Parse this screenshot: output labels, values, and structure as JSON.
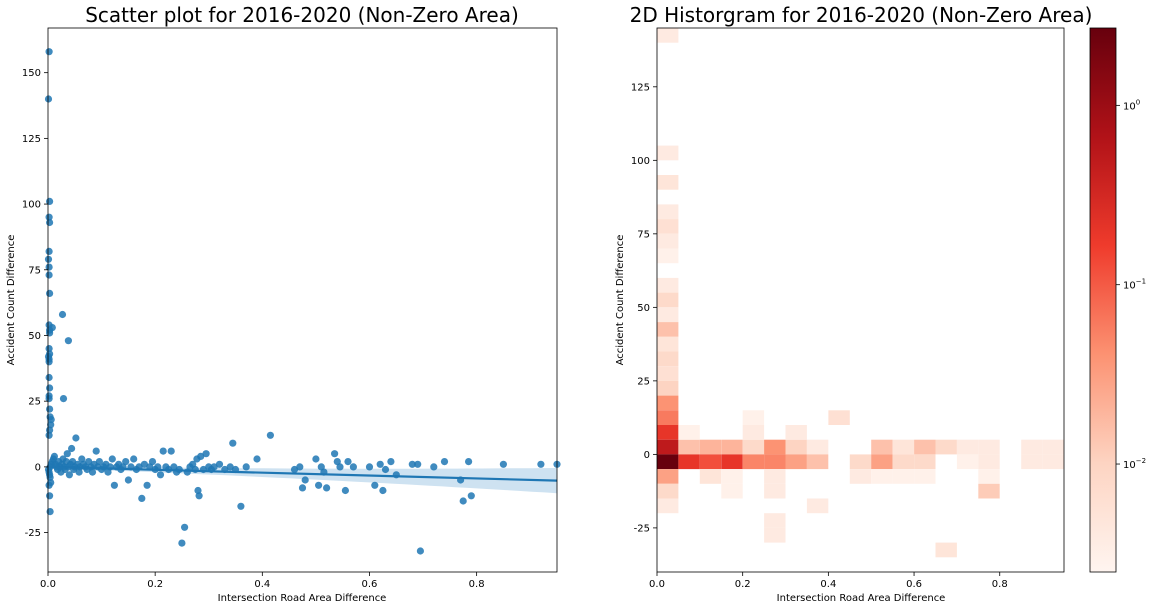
{
  "chart_data": [
    {
      "type": "scatter",
      "title": "Scatter plot for 2016-2020 (Non-Zero Area)",
      "xlabel": "Intersection Road Area Difference",
      "ylabel": "Accident Count Difference",
      "xlim": [
        0,
        0.95
      ],
      "ylim": [
        -40,
        167
      ],
      "xticks": [
        "0.0",
        "0.2",
        "0.4",
        "0.6",
        "0.8"
      ],
      "yticks": [
        "-25",
        "0",
        "25",
        "50",
        "75",
        "100",
        "125",
        "150"
      ],
      "grid": false,
      "color": "#1f77b4",
      "points": [
        [
          0.002,
          158
        ],
        [
          0.001,
          140
        ],
        [
          0.003,
          101
        ],
        [
          0.002,
          95
        ],
        [
          0.003,
          93
        ],
        [
          0.002,
          82
        ],
        [
          0.001,
          79
        ],
        [
          0.002,
          76
        ],
        [
          0.002,
          73
        ],
        [
          0.003,
          66
        ],
        [
          0.002,
          54
        ],
        [
          0.003,
          52
        ],
        [
          0.003,
          51
        ],
        [
          0.002,
          45
        ],
        [
          0.003,
          43
        ],
        [
          0.001,
          42
        ],
        [
          0.002,
          41
        ],
        [
          0.002,
          40
        ],
        [
          0.002,
          34
        ],
        [
          0.003,
          30
        ],
        [
          0.002,
          27
        ],
        [
          0.002,
          26
        ],
        [
          0.003,
          22
        ],
        [
          0.004,
          19
        ],
        [
          0.006,
          18
        ],
        [
          0.005,
          16
        ],
        [
          0.003,
          14
        ],
        [
          0.002,
          12
        ],
        [
          0.008,
          53
        ],
        [
          0.027,
          58
        ],
        [
          0.038,
          48
        ],
        [
          0.029,
          26
        ],
        [
          0.004,
          -17
        ],
        [
          0.003,
          -11
        ],
        [
          0.002,
          -7
        ],
        [
          0.005,
          -6
        ],
        [
          0.004,
          -4
        ],
        [
          0.003,
          -3
        ],
        [
          0.002,
          -2
        ],
        [
          0.001,
          -1
        ],
        [
          0.004,
          0
        ],
        [
          0.006,
          1
        ],
        [
          0.008,
          2
        ],
        [
          0.01,
          3
        ],
        [
          0.012,
          4
        ],
        [
          0.014,
          1
        ],
        [
          0.016,
          0
        ],
        [
          0.018,
          -1
        ],
        [
          0.02,
          2
        ],
        [
          0.022,
          0
        ],
        [
          0.024,
          -2
        ],
        [
          0.026,
          1
        ],
        [
          0.028,
          3
        ],
        [
          0.03,
          0
        ],
        [
          0.032,
          -1
        ],
        [
          0.034,
          2
        ],
        [
          0.036,
          5
        ],
        [
          0.038,
          0
        ],
        [
          0.04,
          -3
        ],
        [
          0.042,
          1
        ],
        [
          0.044,
          7
        ],
        [
          0.046,
          2
        ],
        [
          0.048,
          -1
        ],
        [
          0.05,
          0
        ],
        [
          0.052,
          11
        ],
        [
          0.055,
          1
        ],
        [
          0.058,
          -2
        ],
        [
          0.06,
          0
        ],
        [
          0.063,
          3
        ],
        [
          0.066,
          1
        ],
        [
          0.07,
          0
        ],
        [
          0.073,
          -1
        ],
        [
          0.076,
          2
        ],
        [
          0.08,
          0
        ],
        [
          0.083,
          -2
        ],
        [
          0.086,
          1
        ],
        [
          0.09,
          6
        ],
        [
          0.093,
          0
        ],
        [
          0.096,
          2
        ],
        [
          0.1,
          -1
        ],
        [
          0.104,
          0
        ],
        [
          0.108,
          1
        ],
        [
          0.112,
          -2
        ],
        [
          0.116,
          0
        ],
        [
          0.12,
          3
        ],
        [
          0.124,
          -7
        ],
        [
          0.128,
          0
        ],
        [
          0.132,
          1
        ],
        [
          0.136,
          -1
        ],
        [
          0.14,
          0
        ],
        [
          0.145,
          2
        ],
        [
          0.15,
          -5
        ],
        [
          0.155,
          0
        ],
        [
          0.16,
          3
        ],
        [
          0.165,
          -1
        ],
        [
          0.17,
          0
        ],
        [
          0.175,
          -12
        ],
        [
          0.18,
          1
        ],
        [
          0.185,
          -7
        ],
        [
          0.19,
          0
        ],
        [
          0.195,
          2
        ],
        [
          0.2,
          -1
        ],
        [
          0.205,
          0
        ],
        [
          0.21,
          -3
        ],
        [
          0.215,
          6
        ],
        [
          0.22,
          0
        ],
        [
          0.225,
          -1
        ],
        [
          0.23,
          6
        ],
        [
          0.235,
          0
        ],
        [
          0.24,
          -2
        ],
        [
          0.245,
          -1
        ],
        [
          0.25,
          -29
        ],
        [
          0.255,
          -23
        ],
        [
          0.26,
          -2
        ],
        [
          0.265,
          0
        ],
        [
          0.27,
          1
        ],
        [
          0.275,
          -1
        ],
        [
          0.278,
          3
        ],
        [
          0.28,
          -9
        ],
        [
          0.282,
          -11
        ],
        [
          0.285,
          4
        ],
        [
          0.29,
          -1
        ],
        [
          0.295,
          5
        ],
        [
          0.3,
          0
        ],
        [
          0.305,
          -1
        ],
        [
          0.31,
          0
        ],
        [
          0.32,
          1
        ],
        [
          0.33,
          -1
        ],
        [
          0.34,
          0
        ],
        [
          0.345,
          9
        ],
        [
          0.35,
          -1
        ],
        [
          0.36,
          -15
        ],
        [
          0.37,
          0
        ],
        [
          0.39,
          3
        ],
        [
          0.415,
          12
        ],
        [
          0.46,
          -1
        ],
        [
          0.47,
          0
        ],
        [
          0.475,
          -8
        ],
        [
          0.48,
          -5
        ],
        [
          0.5,
          3
        ],
        [
          0.505,
          -7
        ],
        [
          0.51,
          0
        ],
        [
          0.515,
          -2
        ],
        [
          0.52,
          -8
        ],
        [
          0.535,
          5
        ],
        [
          0.54,
          2
        ],
        [
          0.545,
          0
        ],
        [
          0.555,
          -9
        ],
        [
          0.56,
          2
        ],
        [
          0.57,
          0
        ],
        [
          0.6,
          0
        ],
        [
          0.61,
          -7
        ],
        [
          0.62,
          1
        ],
        [
          0.625,
          -9
        ],
        [
          0.63,
          -1
        ],
        [
          0.64,
          2
        ],
        [
          0.65,
          -3
        ],
        [
          0.68,
          1
        ],
        [
          0.69,
          1
        ],
        [
          0.695,
          -32
        ],
        [
          0.72,
          0
        ],
        [
          0.74,
          2
        ],
        [
          0.77,
          -5
        ],
        [
          0.775,
          -13
        ],
        [
          0.785,
          2
        ],
        [
          0.79,
          -11
        ],
        [
          0.85,
          1
        ],
        [
          0.92,
          1
        ],
        [
          0.95,
          1
        ]
      ],
      "regression": {
        "slope": -5.5,
        "intercept": 0.0
      },
      "confidence_band": "light blue band widening toward higher x"
    },
    {
      "type": "heatmap",
      "title": "2D Historgram for 2016-2020 (Non-Zero Area)",
      "xlabel": "Intersection Road Area Difference",
      "ylabel": "Accident Count Difference",
      "xlim": [
        0,
        0.95
      ],
      "ylim": [
        -40,
        145
      ],
      "xticks": [
        "0.0",
        "0.2",
        "0.4",
        "0.6",
        "0.8"
      ],
      "yticks": [
        "-25",
        "0",
        "25",
        "50",
        "75",
        "100",
        "125"
      ],
      "colormap": "Reds",
      "color_scale": "log",
      "colorbar_range": [
        0.0025,
        2.7
      ],
      "colorbar_ticks": [
        "10^0",
        "10^-1",
        "10^-2"
      ],
      "bins": {
        "x_edges": [
          0,
          0.05,
          0.1,
          0.15,
          0.2,
          0.25,
          0.3,
          0.35,
          0.4,
          0.45,
          0.5,
          0.55,
          0.6,
          0.65,
          0.7,
          0.75,
          0.8,
          0.85,
          0.9,
          0.95
        ],
        "y_bin_width": 5,
        "y_start": -40
      },
      "cells": [
        [
          0,
          140,
          0.004
        ],
        [
          0,
          100,
          0.004
        ],
        [
          0,
          90,
          0.005
        ],
        [
          0,
          80,
          0.004
        ],
        [
          0,
          75,
          0.006
        ],
        [
          0,
          70,
          0.004
        ],
        [
          0,
          65,
          0.003
        ],
        [
          0,
          55,
          0.004
        ],
        [
          0,
          50,
          0.008
        ],
        [
          0,
          45,
          0.004
        ],
        [
          0,
          40,
          0.015
        ],
        [
          0,
          35,
          0.005
        ],
        [
          0,
          30,
          0.008
        ],
        [
          0,
          25,
          0.006
        ],
        [
          0,
          20,
          0.01
        ],
        [
          0,
          15,
          0.04
        ],
        [
          0,
          10,
          0.06
        ],
        [
          0,
          5,
          0.2
        ],
        [
          0,
          0,
          0.5
        ],
        [
          0,
          -5,
          2.7
        ],
        [
          0,
          -10,
          0.03
        ],
        [
          0,
          -15,
          0.008
        ],
        [
          0,
          -20,
          0.004
        ],
        [
          1,
          0,
          0.015
        ],
        [
          1,
          -5,
          0.2
        ],
        [
          1,
          5,
          0.003
        ],
        [
          2,
          0,
          0.02
        ],
        [
          2,
          -5,
          0.12
        ],
        [
          2,
          -10,
          0.005
        ],
        [
          3,
          0,
          0.02
        ],
        [
          3,
          -5,
          0.2
        ],
        [
          3,
          -10,
          0.003
        ],
        [
          3,
          -15,
          0.003
        ],
        [
          4,
          0,
          0.008
        ],
        [
          4,
          -5,
          0.05
        ],
        [
          4,
          5,
          0.004
        ],
        [
          4,
          10,
          0.003
        ],
        [
          5,
          0,
          0.04
        ],
        [
          5,
          -5,
          0.05
        ],
        [
          5,
          -10,
          0.004
        ],
        [
          5,
          -15,
          0.004
        ],
        [
          5,
          -25,
          0.004
        ],
        [
          5,
          -30,
          0.004
        ],
        [
          6,
          0,
          0.01
        ],
        [
          6,
          -5,
          0.03
        ],
        [
          6,
          5,
          0.004
        ],
        [
          7,
          0,
          0.004
        ],
        [
          7,
          -5,
          0.015
        ],
        [
          7,
          -20,
          0.004
        ],
        [
          8,
          10,
          0.006
        ],
        [
          9,
          -5,
          0.008
        ],
        [
          9,
          -10,
          0.004
        ],
        [
          10,
          0,
          0.015
        ],
        [
          10,
          -5,
          0.03
        ],
        [
          10,
          -10,
          0.003
        ],
        [
          11,
          0,
          0.005
        ],
        [
          11,
          -5,
          0.008
        ],
        [
          11,
          -10,
          0.003
        ],
        [
          12,
          0,
          0.015
        ],
        [
          12,
          -5,
          0.008
        ],
        [
          12,
          -10,
          0.003
        ],
        [
          13,
          0,
          0.008
        ],
        [
          13,
          -35,
          0.005
        ],
        [
          14,
          0,
          0.004
        ],
        [
          14,
          -5,
          0.003
        ],
        [
          15,
          0,
          0.004
        ],
        [
          15,
          -5,
          0.004
        ],
        [
          15,
          -10,
          0.003
        ],
        [
          15,
          -15,
          0.012
        ],
        [
          17,
          0,
          0.004
        ],
        [
          17,
          -5,
          0.004
        ],
        [
          18,
          0,
          0.004
        ],
        [
          18,
          -5,
          0.004
        ]
      ]
    }
  ]
}
